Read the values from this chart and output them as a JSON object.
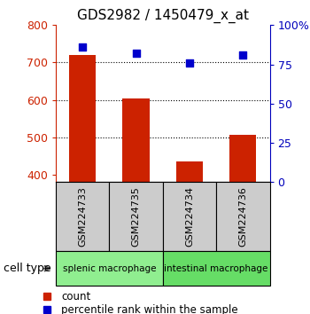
{
  "title": "GDS2982 / 1450479_x_at",
  "samples": [
    "GSM224733",
    "GSM224735",
    "GSM224734",
    "GSM224736"
  ],
  "counts": [
    720,
    603,
    435,
    507
  ],
  "percentiles": [
    86,
    82,
    76,
    81
  ],
  "ylim_left": [
    380,
    800
  ],
  "ylim_right": [
    0,
    100
  ],
  "yticks_left": [
    400,
    500,
    600,
    700,
    800
  ],
  "yticks_right": [
    0,
    25,
    50,
    75,
    100
  ],
  "ytick_labels_right": [
    "0",
    "25",
    "50",
    "75",
    "100%"
  ],
  "grid_lines": [
    500,
    600,
    700
  ],
  "cell_types": [
    {
      "label": "splenic macrophage",
      "samples": [
        0,
        1
      ],
      "color": "#90ee90"
    },
    {
      "label": "intestinal macrophage",
      "samples": [
        2,
        3
      ],
      "color": "#66dd66"
    }
  ],
  "bar_color": "#cc2200",
  "dot_color": "#0000cc",
  "bar_width": 0.5,
  "cell_type_label": "cell type",
  "legend_count_label": "count",
  "legend_percentile_label": "percentile rank within the sample",
  "left_tick_color": "#cc2200",
  "right_tick_color": "#0000bb",
  "bg_label": "#cccccc"
}
